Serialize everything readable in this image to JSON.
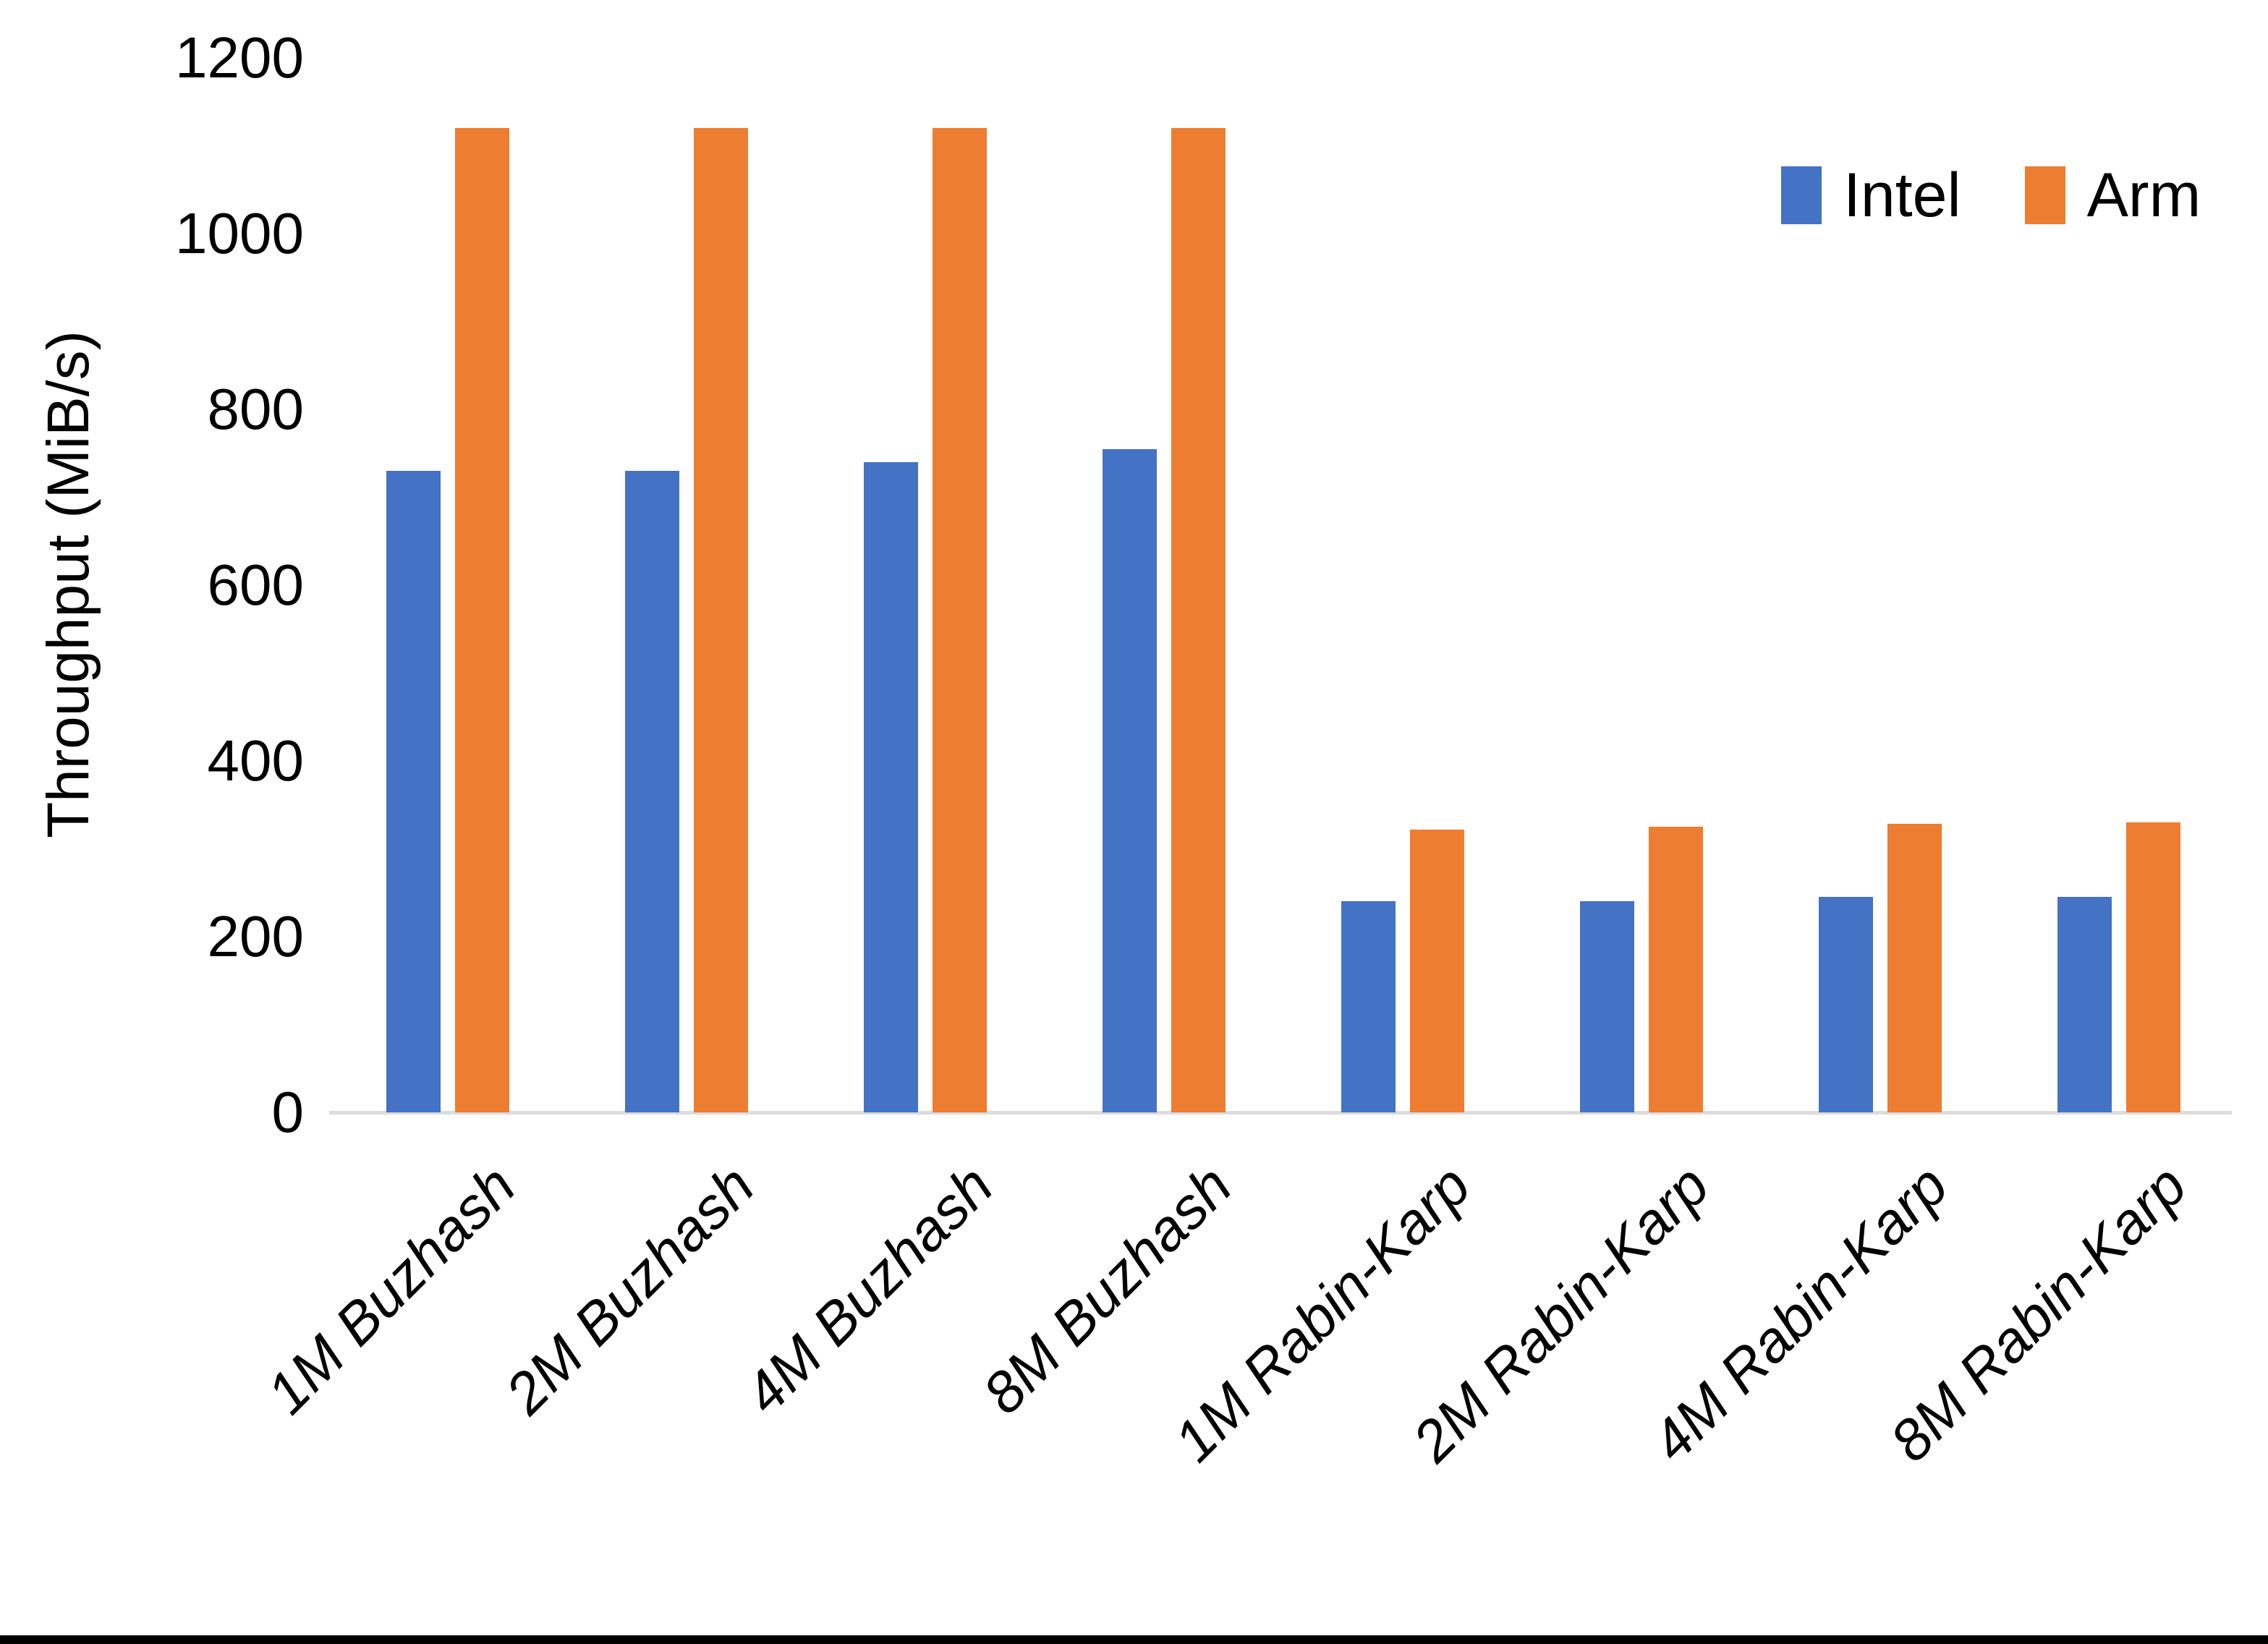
{
  "chart_data": {
    "type": "bar",
    "title": "",
    "xlabel": "",
    "ylabel": "Throughput (MiB/s)",
    "ylim": [
      0,
      1200
    ],
    "yticks": [
      0,
      200,
      400,
      600,
      800,
      1000,
      1200
    ],
    "grid": false,
    "legend_position": "top-right",
    "categories": [
      "1M Buzhash",
      "2M Buzhash",
      "4M Buzhash",
      "8M Buzhash",
      "1M Rabin-Karp",
      "2M Rabin-Karp",
      "4M Rabin-Karp",
      "8M Rabin-Karp"
    ],
    "series": [
      {
        "name": "Intel",
        "color": "#4472C4",
        "values": [
          730,
          730,
          740,
          755,
          240,
          240,
          245,
          245
        ]
      },
      {
        "name": "Arm",
        "color": "#ED7D31",
        "values": [
          1120,
          1120,
          1120,
          1120,
          322,
          325,
          328,
          330
        ]
      }
    ],
    "colors": {
      "axis_line": "#DCDCDC",
      "text": "#000000",
      "background": "#FFFFFF",
      "bottom_frame": "#000000"
    }
  }
}
